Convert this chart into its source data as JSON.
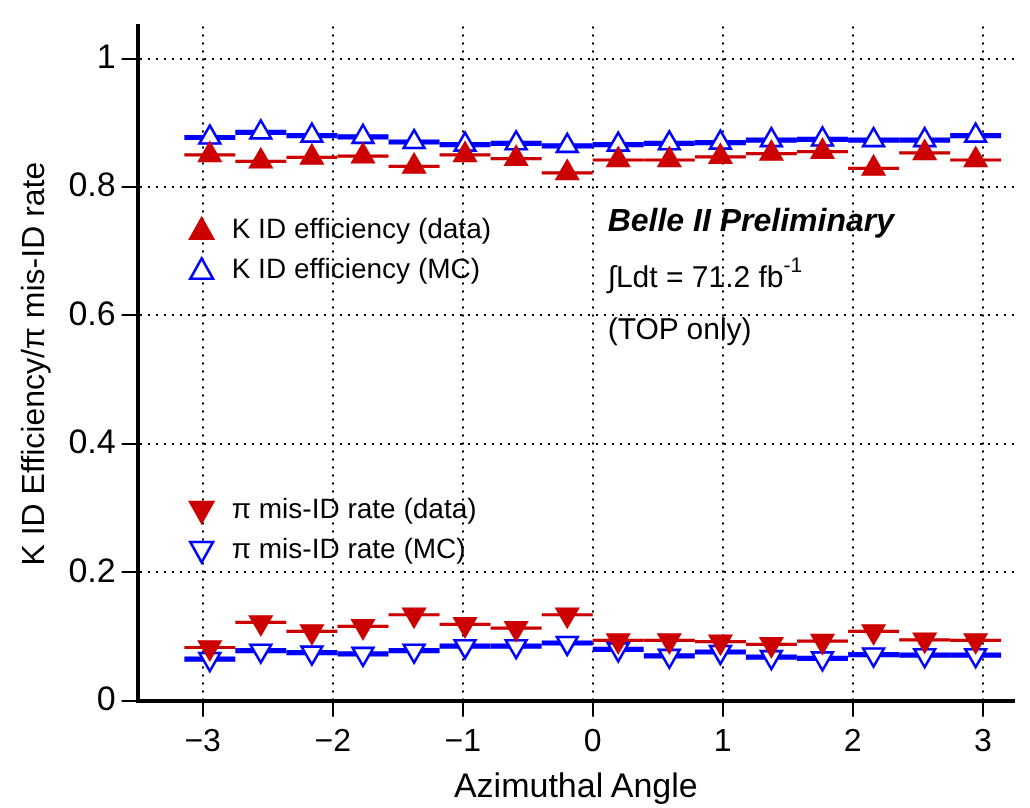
{
  "chart_data": {
    "type": "scatter",
    "xlabel": "Azimuthal Angle",
    "ylabel": "K ID Efficiency/π mis-ID rate",
    "x": [
      -2.945,
      -2.553,
      -2.16,
      -1.767,
      -1.374,
      -0.982,
      -0.589,
      -0.196,
      0.196,
      0.589,
      0.982,
      1.374,
      1.767,
      2.16,
      2.553,
      2.945
    ],
    "series": [
      {
        "name": "K ID efficiency (data)",
        "color": "#cc0000",
        "marker": "triangle",
        "values": [
          0.85,
          0.84,
          0.846,
          0.848,
          0.832,
          0.85,
          0.844,
          0.822,
          0.842,
          0.842,
          0.847,
          0.852,
          0.855,
          0.829,
          0.853,
          0.842
        ],
        "xerrors": [
          0.196,
          0.196,
          0.196,
          0.196,
          0.196,
          0.196,
          0.196,
          0.196,
          0.196,
          0.196,
          0.196,
          0.196,
          0.196,
          0.196,
          0.196,
          0.196
        ]
      },
      {
        "name": "K ID efficiency (MC)",
        "color": "#0000ff",
        "marker": "triangle-open",
        "values": [
          0.877,
          0.885,
          0.88,
          0.878,
          0.87,
          0.866,
          0.868,
          0.864,
          0.866,
          0.868,
          0.869,
          0.873,
          0.874,
          0.873,
          0.873,
          0.88
        ],
        "xerrors": [
          0.196,
          0.196,
          0.196,
          0.196,
          0.196,
          0.196,
          0.196,
          0.196,
          0.196,
          0.196,
          0.196,
          0.196,
          0.196,
          0.196,
          0.196,
          0.196
        ]
      },
      {
        "name": "π mis-ID rate (data)",
        "color": "#cc0000",
        "marker": "triangle-down",
        "values": [
          0.083,
          0.122,
          0.108,
          0.116,
          0.134,
          0.119,
          0.113,
          0.134,
          0.094,
          0.094,
          0.092,
          0.088,
          0.093,
          0.108,
          0.095,
          0.094
        ],
        "xerrors": [
          0.196,
          0.196,
          0.196,
          0.196,
          0.196,
          0.196,
          0.196,
          0.196,
          0.196,
          0.196,
          0.196,
          0.196,
          0.196,
          0.196,
          0.196,
          0.196
        ]
      },
      {
        "name": "π mis-ID rate (MC)",
        "color": "#0000ff",
        "marker": "triangle-down-open",
        "values": [
          0.065,
          0.078,
          0.075,
          0.073,
          0.078,
          0.085,
          0.085,
          0.09,
          0.08,
          0.07,
          0.076,
          0.068,
          0.066,
          0.072,
          0.071,
          0.071
        ],
        "xerrors": [
          0.196,
          0.196,
          0.196,
          0.196,
          0.196,
          0.196,
          0.196,
          0.196,
          0.196,
          0.196,
          0.196,
          0.196,
          0.196,
          0.196,
          0.196,
          0.196
        ]
      }
    ],
    "xlim": [
      -3.5,
      3.24
    ],
    "xticks": [
      {
        "value": -3,
        "label": "−3"
      },
      {
        "value": -2,
        "label": "−2"
      },
      {
        "value": -1,
        "label": "−1"
      },
      0,
      1,
      2,
      3
    ],
    "ylim": [
      0,
      1.05
    ],
    "yticks": [
      0,
      0.2,
      0.4,
      0.6,
      0.8,
      1
    ],
    "grid": true,
    "legend": "left",
    "annotations": [
      "Belle II Preliminary",
      "∫Ldt = 71.2 fb$^{-1}$",
      "(TOP only)"
    ]
  }
}
